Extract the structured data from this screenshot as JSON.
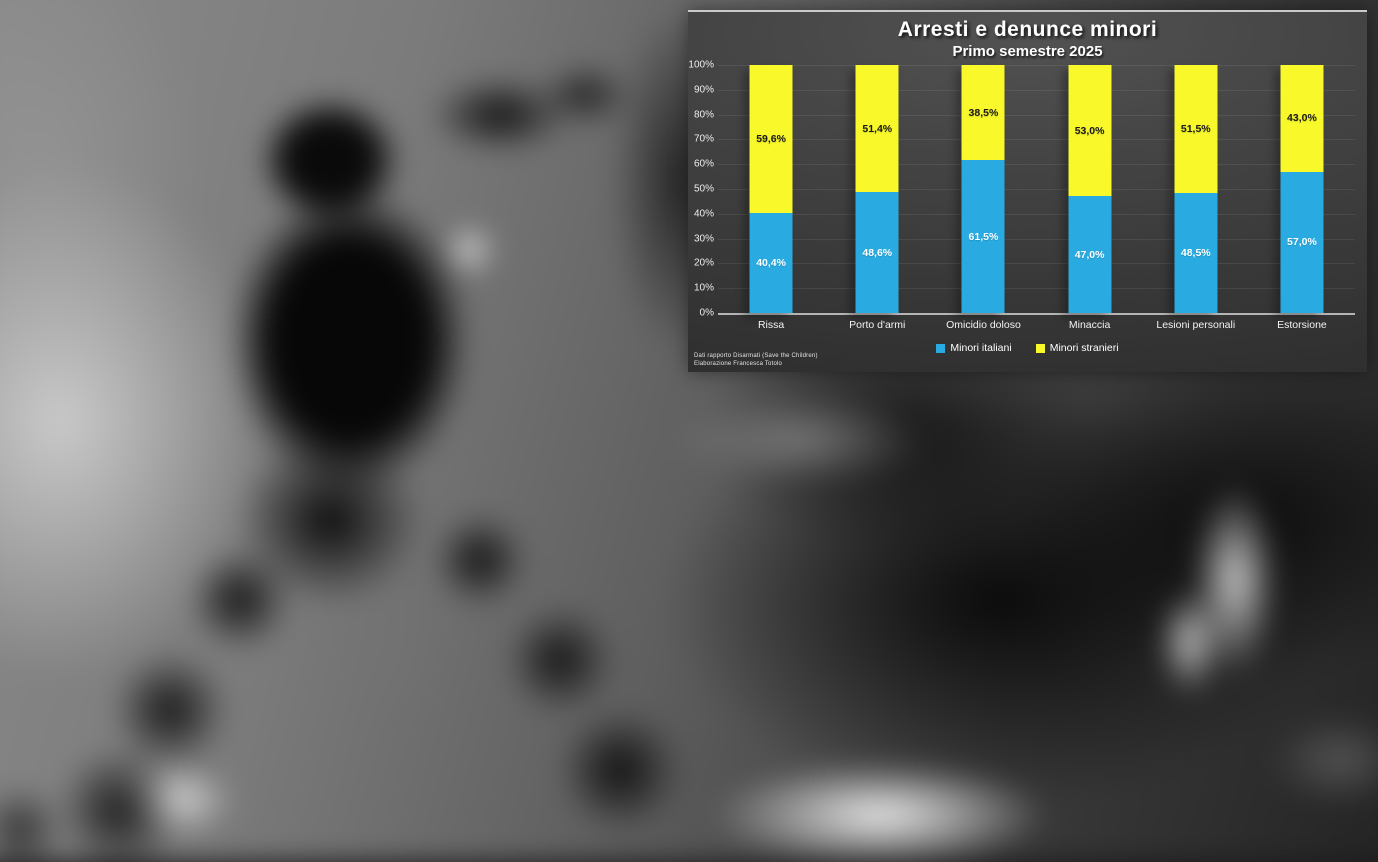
{
  "chart": {
    "source_line1": "Dati rapporto Disarmati (Save the Children)",
    "source_line2": "Elaborazione Francesca Totolo",
    "axis_color": "#b5b5b5",
    "panel_background": "#3d3d3d",
    "text_color": "#ffffff"
  },
  "chart_data": {
    "type": "bar",
    "stacked": true,
    "percent_stacked": true,
    "title": "Arresti e denunce minori",
    "subtitle": "Primo semestre 2025",
    "categories": [
      "Rissa",
      "Porto d'armi",
      "Omicidio doloso",
      "Minaccia",
      "Lesioni personali",
      "Estorsione"
    ],
    "series": [
      {
        "name": "Minori italiani",
        "color": "#29abe2",
        "label_color": "#ffffff",
        "values": [
          40.4,
          48.6,
          61.5,
          47.0,
          48.5,
          57.0
        ],
        "labels": [
          "40,4%",
          "48,6%",
          "61,5%",
          "47,0%",
          "48,5%",
          "57,0%"
        ]
      },
      {
        "name": "Minori stranieri",
        "color": "#f8f82b",
        "label_color": "#1a1a1a",
        "values": [
          59.6,
          51.4,
          38.5,
          53.0,
          51.5,
          43.0
        ],
        "labels": [
          "59,6%",
          "51,4%",
          "38,5%",
          "53,0%",
          "51,5%",
          "43,0%"
        ]
      }
    ],
    "y_tick_labels": [
      "0%",
      "10%",
      "20%",
      "30%",
      "40%",
      "50%",
      "60%",
      "70%",
      "80%",
      "90%",
      "100%"
    ],
    "y_tick_values": [
      0,
      10,
      20,
      30,
      40,
      50,
      60,
      70,
      80,
      90,
      100
    ],
    "ylim": [
      0,
      100
    ],
    "grid": true,
    "legend_position": "bottom"
  }
}
